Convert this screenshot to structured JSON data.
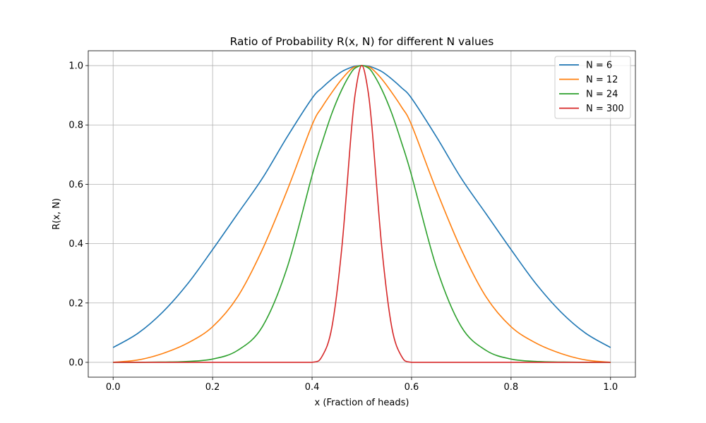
{
  "chart_data": {
    "type": "line",
    "title": "Ratio of Probability R(x, N) for different N values",
    "xlabel": "x (Fraction of heads)",
    "ylabel": "R(x, N)",
    "xlim": [
      -0.05,
      1.05
    ],
    "ylim": [
      -0.05,
      1.05
    ],
    "x_ticks": [
      0.0,
      0.2,
      0.4,
      0.6,
      0.8,
      1.0
    ],
    "x_tick_labels": [
      "0.0",
      "0.2",
      "0.4",
      "0.6",
      "0.8",
      "1.0"
    ],
    "y_ticks": [
      0.0,
      0.2,
      0.4,
      0.6,
      0.8,
      1.0
    ],
    "y_tick_labels": [
      "0.0",
      "0.2",
      "0.4",
      "0.6",
      "0.8",
      "1.0"
    ],
    "grid": true,
    "legend_position": "top-right",
    "x": [
      0.0,
      0.05,
      0.1,
      0.15,
      0.2,
      0.25,
      0.3,
      0.35,
      0.4,
      0.42,
      0.44,
      0.46,
      0.48,
      0.49,
      0.5,
      0.51,
      0.52,
      0.54,
      0.56,
      0.58,
      0.6,
      0.65,
      0.7,
      0.75,
      0.8,
      0.85,
      0.9,
      0.95,
      1.0
    ],
    "series": [
      {
        "name": "N = 6",
        "color": "#1f77b4",
        "values": [
          0.05,
          0.098,
          0.17,
          0.265,
          0.38,
          0.5,
          0.62,
          0.76,
          0.89,
          0.925,
          0.955,
          0.98,
          0.995,
          0.999,
          1.0,
          0.999,
          0.995,
          0.98,
          0.955,
          0.925,
          0.89,
          0.76,
          0.62,
          0.5,
          0.38,
          0.265,
          0.17,
          0.098,
          0.05
        ]
      },
      {
        "name": "N = 12",
        "color": "#ff7f0e",
        "values": [
          0.0,
          0.008,
          0.03,
          0.065,
          0.12,
          0.22,
          0.38,
          0.58,
          0.8,
          0.86,
          0.91,
          0.955,
          0.99,
          0.997,
          1.0,
          0.997,
          0.99,
          0.955,
          0.91,
          0.86,
          0.8,
          0.58,
          0.38,
          0.22,
          0.12,
          0.065,
          0.03,
          0.008,
          0.0
        ]
      },
      {
        "name": "N = 24",
        "color": "#2ca02c",
        "values": [
          0.0,
          0.0,
          0.001,
          0.003,
          0.011,
          0.04,
          0.12,
          0.32,
          0.63,
          0.74,
          0.84,
          0.92,
          0.98,
          0.995,
          1.0,
          0.995,
          0.98,
          0.92,
          0.84,
          0.74,
          0.63,
          0.32,
          0.12,
          0.04,
          0.011,
          0.003,
          0.001,
          0.0,
          0.0
        ]
      },
      {
        "name": "N = 300",
        "color": "#d62728",
        "values": [
          0.0,
          0.0,
          0.0,
          0.0,
          0.0,
          0.0,
          0.0,
          0.0,
          0.0,
          0.02,
          0.12,
          0.39,
          0.8,
          0.94,
          1.0,
          0.94,
          0.8,
          0.39,
          0.12,
          0.02,
          0.0,
          0.0,
          0.0,
          0.0,
          0.0,
          0.0,
          0.0,
          0.0,
          0.0
        ]
      }
    ]
  }
}
